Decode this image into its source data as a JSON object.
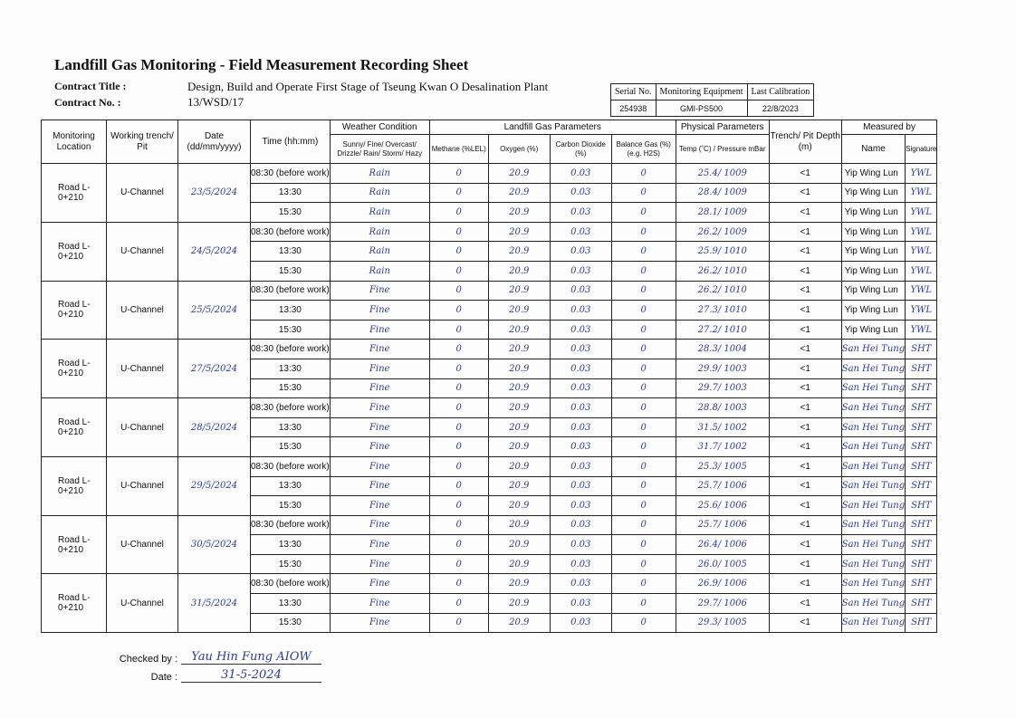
{
  "title": "Landfill Gas Monitoring - Field Measurement Recording Sheet",
  "contract": {
    "title_label": "Contract Title :",
    "title": "Design, Build and Operate First Stage of Tseung Kwan O Desalination Plant",
    "no_label": "Contract No. :",
    "no": "13/WSD/17"
  },
  "equipment": {
    "headers": [
      "Serial No.",
      "Monitoring Equipment",
      "Last Calibration"
    ],
    "values": [
      "254938",
      "GMI-PS500",
      "22/8/2023"
    ]
  },
  "headers": {
    "location": "Monitoring Location",
    "trench": "Working trench/ Pit",
    "date": "Date (dd/mm/yyyy)",
    "time": "Time (hh:mm)",
    "weather_group": "Weather Condition",
    "weather": "Sunny/ Fine/ Overcast/ Drizzle/ Rain/ Storm/ Hazy",
    "gas_group": "Landfill Gas Parameters",
    "methane": "Methane (%LEL)",
    "oxygen": "Oxygen (%)",
    "co2": "Carbon Dioxide (%)",
    "balance": "Balance Gas (%) (e.g. H2S)",
    "phys_group": "Physical Parameters",
    "temp": "Temp (˚C) / Pressure mBar",
    "depth": "Trench/ Pit Depth (m)",
    "measured_group": "Measured by",
    "name": "Name",
    "signature": "Signature"
  },
  "groups": [
    {
      "location": "Road L-0+210",
      "trench": "U-Channel",
      "date": "23/5/2024",
      "rows": [
        {
          "time": "08:30 (before work)",
          "weather": "Rain",
          "methane": "0",
          "oxygen": "20.9",
          "co2": "0.03",
          "balance": "0",
          "temp_pressure": "25.4/ 1009",
          "depth": "<1",
          "name": "Yip Wing Lun",
          "signature": "YWL"
        },
        {
          "time": "13:30",
          "weather": "Rain",
          "methane": "0",
          "oxygen": "20.9",
          "co2": "0.03",
          "balance": "0",
          "temp_pressure": "28.4/ 1009",
          "depth": "<1",
          "name": "Yip Wing Lun",
          "signature": "YWL"
        },
        {
          "time": "15:30",
          "weather": "Rain",
          "methane": "0",
          "oxygen": "20.9",
          "co2": "0.03",
          "balance": "0",
          "temp_pressure": "28.1/ 1009",
          "depth": "<1",
          "name": "Yip Wing Lun",
          "signature": "YWL"
        }
      ]
    },
    {
      "location": "Road L-0+210",
      "trench": "U-Channel",
      "date": "24/5/2024",
      "rows": [
        {
          "time": "08:30 (before work)",
          "weather": "Rain",
          "methane": "0",
          "oxygen": "20.9",
          "co2": "0.03",
          "balance": "0",
          "temp_pressure": "26.2/ 1009",
          "depth": "<1",
          "name": "Yip Wing Lun",
          "signature": "YWL"
        },
        {
          "time": "13:30",
          "weather": "Rain",
          "methane": "0",
          "oxygen": "20.9",
          "co2": "0.03",
          "balance": "0",
          "temp_pressure": "25.9/ 1010",
          "depth": "<1",
          "name": "Yip Wing Lun",
          "signature": "YWL"
        },
        {
          "time": "15:30",
          "weather": "Rain",
          "methane": "0",
          "oxygen": "20.9",
          "co2": "0.03",
          "balance": "0",
          "temp_pressure": "26.2/ 1010",
          "depth": "<1",
          "name": "Yip Wing Lun",
          "signature": "YWL"
        }
      ]
    },
    {
      "location": "Road L-0+210",
      "trench": "U-Channel",
      "date": "25/5/2024",
      "rows": [
        {
          "time": "08:30 (before work)",
          "weather": "Fine",
          "methane": "0",
          "oxygen": "20.9",
          "co2": "0.03",
          "balance": "0",
          "temp_pressure": "26.2/ 1010",
          "depth": "<1",
          "name": "Yip Wing Lun",
          "signature": "YWL"
        },
        {
          "time": "13:30",
          "weather": "Fine",
          "methane": "0",
          "oxygen": "20.9",
          "co2": "0.03",
          "balance": "0",
          "temp_pressure": "27.3/ 1010",
          "depth": "<1",
          "name": "Yip Wing Lun",
          "signature": "YWL"
        },
        {
          "time": "15:30",
          "weather": "Fine",
          "methane": "0",
          "oxygen": "20.9",
          "co2": "0.03",
          "balance": "0",
          "temp_pressure": "27.2/ 1010",
          "depth": "<1",
          "name": "Yip Wing Lun",
          "signature": "YWL"
        }
      ]
    },
    {
      "location": "Road L-0+210",
      "trench": "U-Channel",
      "date": "27/5/2024",
      "rows": [
        {
          "time": "08:30 (before work)",
          "weather": "Fine",
          "methane": "0",
          "oxygen": "20.9",
          "co2": "0.03",
          "balance": "0",
          "temp_pressure": "28.3/ 1004",
          "depth": "<1",
          "name": "San Hei Tung",
          "signature": "SHT"
        },
        {
          "time": "13:30",
          "weather": "Fine",
          "methane": "0",
          "oxygen": "20.9",
          "co2": "0.03",
          "balance": "0",
          "temp_pressure": "29.9/ 1003",
          "depth": "<1",
          "name": "San Hei Tung",
          "signature": "SHT"
        },
        {
          "time": "15:30",
          "weather": "Fine",
          "methane": "0",
          "oxygen": "20.9",
          "co2": "0.03",
          "balance": "0",
          "temp_pressure": "29.7/ 1003",
          "depth": "<1",
          "name": "San Hei Tung",
          "signature": "SHT"
        }
      ]
    },
    {
      "location": "Road L-0+210",
      "trench": "U-Channel",
      "date": "28/5/2024",
      "rows": [
        {
          "time": "08:30 (before work)",
          "weather": "Fine",
          "methane": "0",
          "oxygen": "20.9",
          "co2": "0.03",
          "balance": "0",
          "temp_pressure": "28.8/ 1003",
          "depth": "<1",
          "name": "San Hei Tung",
          "signature": "SHT"
        },
        {
          "time": "13:30",
          "weather": "Fine",
          "methane": "0",
          "oxygen": "20.9",
          "co2": "0.03",
          "balance": "0",
          "temp_pressure": "31.5/ 1002",
          "depth": "<1",
          "name": "San Hei Tung",
          "signature": "SHT"
        },
        {
          "time": "15:30",
          "weather": "Fine",
          "methane": "0",
          "oxygen": "20.9",
          "co2": "0.03",
          "balance": "0",
          "temp_pressure": "31.7/ 1002",
          "depth": "<1",
          "name": "San Hei Tung",
          "signature": "SHT"
        }
      ]
    },
    {
      "location": "Road L-0+210",
      "trench": "U-Channel",
      "date": "29/5/2024",
      "rows": [
        {
          "time": "08:30 (before work)",
          "weather": "Fine",
          "methane": "0",
          "oxygen": "20.9",
          "co2": "0.03",
          "balance": "0",
          "temp_pressure": "25.3/ 1005",
          "depth": "<1",
          "name": "San Hei Tung",
          "signature": "SHT"
        },
        {
          "time": "13:30",
          "weather": "Fine",
          "methane": "0",
          "oxygen": "20.9",
          "co2": "0.03",
          "balance": "0",
          "temp_pressure": "25.7/ 1006",
          "depth": "<1",
          "name": "San Hei Tung",
          "signature": "SHT"
        },
        {
          "time": "15:30",
          "weather": "Fine",
          "methane": "0",
          "oxygen": "20.9",
          "co2": "0.03",
          "balance": "0",
          "temp_pressure": "25.6/ 1006",
          "depth": "<1",
          "name": "San Hei Tung",
          "signature": "SHT"
        }
      ]
    },
    {
      "location": "Road L-0+210",
      "trench": "U-Channel",
      "date": "30/5/2024",
      "rows": [
        {
          "time": "08:30 (before work)",
          "weather": "Fine",
          "methane": "0",
          "oxygen": "20.9",
          "co2": "0.03",
          "balance": "0",
          "temp_pressure": "25.7/ 1006",
          "depth": "<1",
          "name": "San Hei Tung",
          "signature": "SHT"
        },
        {
          "time": "13:30",
          "weather": "Fine",
          "methane": "0",
          "oxygen": "20.9",
          "co2": "0.03",
          "balance": "0",
          "temp_pressure": "26.4/ 1006",
          "depth": "<1",
          "name": "San Hei Tung",
          "signature": "SHT"
        },
        {
          "time": "15:30",
          "weather": "Fine",
          "methane": "0",
          "oxygen": "20.9",
          "co2": "0.03",
          "balance": "0",
          "temp_pressure": "26.0/ 1005",
          "depth": "<1",
          "name": "San Hei Tung",
          "signature": "SHT"
        }
      ]
    },
    {
      "location": "Road L-0+210",
      "trench": "U-Channel",
      "date": "31/5/2024",
      "rows": [
        {
          "time": "08:30 (before work)",
          "weather": "Fine",
          "methane": "0",
          "oxygen": "20.9",
          "co2": "0.03",
          "balance": "0",
          "temp_pressure": "26.9/ 1006",
          "depth": "<1",
          "name": "San Hei Tung",
          "signature": "SHT"
        },
        {
          "time": "13:30",
          "weather": "Fine",
          "methane": "0",
          "oxygen": "20.9",
          "co2": "0.03",
          "balance": "0",
          "temp_pressure": "29.7/ 1006",
          "depth": "<1",
          "name": "San Hei Tung",
          "signature": "SHT"
        },
        {
          "time": "15:30",
          "weather": "Fine",
          "methane": "0",
          "oxygen": "20.9",
          "co2": "0.03",
          "balance": "0",
          "temp_pressure": "29.3/ 1005",
          "depth": "<1",
          "name": "San Hei Tung",
          "signature": "SHT"
        }
      ]
    }
  ],
  "footer": {
    "checked_label": "Checked by :",
    "checked_by": "Yau Hin Fung AIOW",
    "date_label": "Date :",
    "date": "31-5-2024"
  },
  "colors": {
    "ink": "#2b3a9c"
  }
}
